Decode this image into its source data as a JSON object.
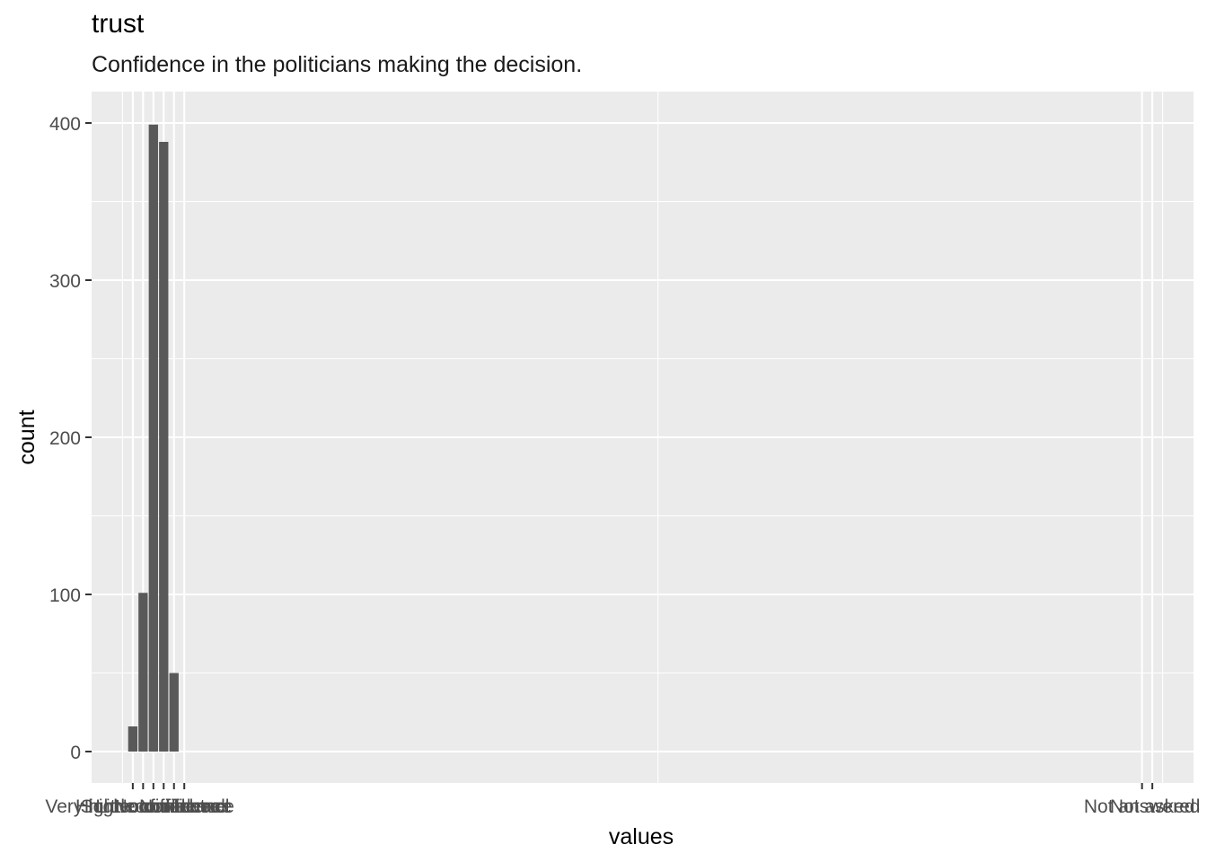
{
  "chart_data": {
    "type": "bar",
    "title": "trust",
    "subtitle": "Confidence in the politicians making the decision.",
    "xlabel": "values",
    "ylabel": "count",
    "ylim": [
      -20,
      420
    ],
    "y_ticks": [
      0,
      100,
      200,
      300,
      400
    ],
    "grid": true,
    "categories": [
      "Very high confidence",
      "High confidence",
      "Some confidence",
      "Little confidence",
      "No confidence",
      "None at all",
      "Not answered",
      "Not asked"
    ],
    "x_labels": [
      "Very high confidence",
      "High confidence",
      "Some confidence",
      "Little confidence",
      "No confidence",
      "None at all",
      "Not answered",
      "Not asked"
    ],
    "x_positions": [
      1,
      2,
      3,
      4,
      5,
      6,
      99,
      100
    ],
    "xlim": [
      -3,
      104
    ],
    "x_major_breaks": [
      1,
      2,
      3,
      4,
      5,
      6,
      99,
      100
    ],
    "x_minor_breaks": [
      0,
      52,
      101
    ],
    "bars": [
      {
        "label": "Very high confidence",
        "x": 1,
        "value": 16
      },
      {
        "label": "High confidence",
        "x": 2,
        "value": 101
      },
      {
        "label": "Some confidence",
        "x": 3,
        "value": 399
      },
      {
        "label": "Little confidence",
        "x": 4,
        "value": 388
      },
      {
        "label": "No confidence",
        "x": 5,
        "value": 50
      }
    ],
    "colors": {
      "bar": "#595959",
      "panel": "#EBEBEB",
      "grid": "#FFFFFF",
      "tick_text": "#4D4D4D"
    }
  }
}
